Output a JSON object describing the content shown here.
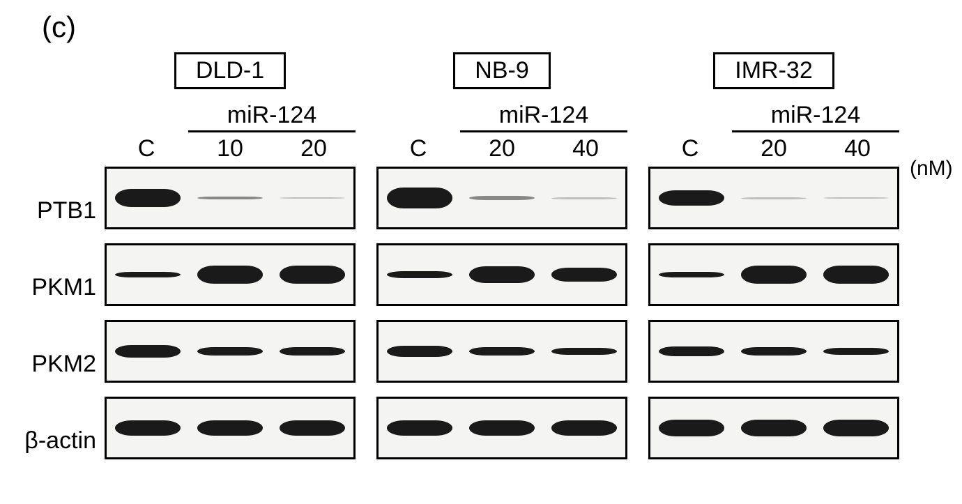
{
  "panel_label": "(c)",
  "unit_label": "(nM)",
  "treatment_group_label": "miR-124",
  "control_label": "C",
  "row_labels": [
    "PTB1",
    "PKM1",
    "PKM2",
    "β-actin"
  ],
  "band_color": "#1a1a1a",
  "blot_bg": "#f4f4f3",
  "border_color": "#000000",
  "cell_lines": [
    {
      "name": "DLD-1",
      "concentrations": [
        "10",
        "20"
      ],
      "rows": [
        {
          "lane_heights": [
            26,
            4,
            2
          ]
        },
        {
          "lane_heights": [
            8,
            26,
            26
          ]
        },
        {
          "lane_heights": [
            18,
            12,
            12
          ]
        },
        {
          "lane_heights": [
            22,
            22,
            22
          ]
        }
      ]
    },
    {
      "name": "NB-9",
      "concentrations": [
        "20",
        "40"
      ],
      "rows": [
        {
          "lane_heights": [
            30,
            6,
            3
          ]
        },
        {
          "lane_heights": [
            10,
            24,
            20
          ]
        },
        {
          "lane_heights": [
            16,
            12,
            10
          ]
        },
        {
          "lane_heights": [
            22,
            22,
            22
          ]
        }
      ]
    },
    {
      "name": "IMR-32",
      "concentrations": [
        "20",
        "40"
      ],
      "rows": [
        {
          "lane_heights": [
            22,
            3,
            2
          ]
        },
        {
          "lane_heights": [
            8,
            26,
            26
          ]
        },
        {
          "lane_heights": [
            14,
            12,
            10
          ]
        },
        {
          "lane_heights": [
            24,
            24,
            24
          ]
        }
      ]
    }
  ]
}
